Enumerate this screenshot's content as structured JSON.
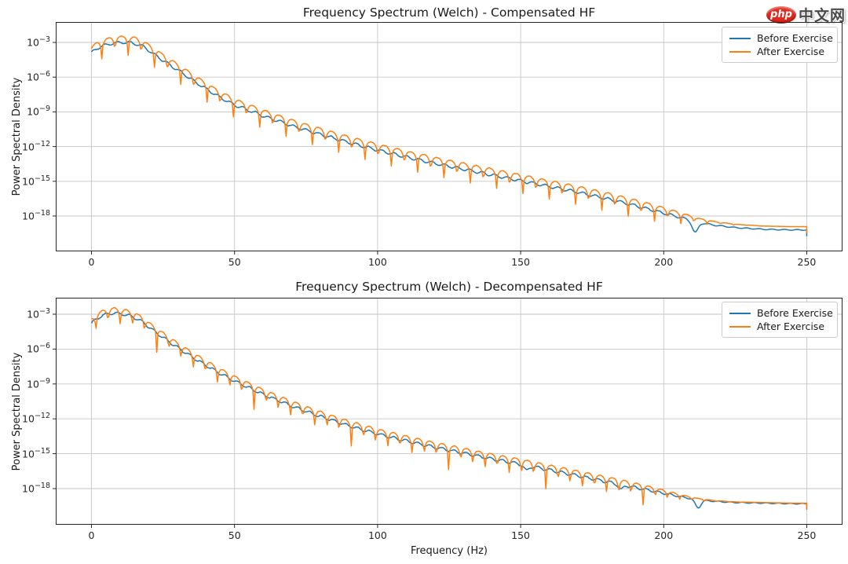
{
  "watermark": {
    "badge": "php",
    "text": "中文网",
    "badge_color": "#e02b20"
  },
  "colors": {
    "before": "#1f77b4",
    "after": "#ff7f0e",
    "grid": "#c6c6c6",
    "spine": "#262626",
    "tick_text": "#262626"
  },
  "chart_data": [
    {
      "type": "line",
      "title": "Frequency Spectrum (Welch) - Compensated HF",
      "legend_position": "upper right",
      "x_axis": {
        "label": "",
        "ticks": [
          0,
          50,
          100,
          150,
          200,
          250
        ],
        "range_hz": [
          -12.5,
          262.5
        ]
      },
      "y_axis": {
        "label": "Power Spectral Density",
        "scale": "log",
        "tick_exponents": [
          -3,
          -6,
          -9,
          -12,
          -15,
          -18
        ],
        "range_log10": [
          -21.0,
          -1.2
        ]
      },
      "series": [
        {
          "name": "Before Exercise",
          "color_key": "before",
          "anchors_hz": [
            0,
            2,
            4,
            6,
            8,
            10,
            12,
            14,
            16,
            18,
            20,
            22,
            25,
            28,
            30,
            35,
            40,
            45,
            50,
            60,
            70,
            80,
            90,
            100,
            110,
            120,
            130,
            140,
            150,
            160,
            170,
            180,
            190,
            200,
            207,
            212,
            218,
            225,
            235,
            245,
            250
          ],
          "anchors_log10_psd": [
            -3.9,
            -3.5,
            -3.3,
            -3.15,
            -3.05,
            -3.0,
            -3.0,
            -3.05,
            -3.15,
            -3.35,
            -3.7,
            -4.05,
            -4.55,
            -5.05,
            -5.35,
            -6.2,
            -7.0,
            -7.75,
            -8.4,
            -9.35,
            -10.2,
            -10.95,
            -11.65,
            -12.3,
            -12.9,
            -13.45,
            -13.95,
            -14.45,
            -14.95,
            -15.45,
            -15.95,
            -16.5,
            -17.1,
            -17.75,
            -18.2,
            -18.55,
            -18.8,
            -19.0,
            -19.15,
            -19.2,
            -19.2
          ],
          "ripple": {
            "amp": 0.12,
            "period_hz": 4.4,
            "phase": 1.2
          },
          "notches": [
            {
              "hz": 211,
              "depth": 0.95,
              "width_hz": 1.4
            }
          ],
          "end_drop_log10": 0.55
        },
        {
          "name": "After Exercise",
          "color_key": "after",
          "envelope_above_before_log10": 0.55,
          "tail_above_before_log10": 0.28,
          "comb_period_hz": 4.6,
          "comb_depth_log10": 2.5,
          "comb_phase": 0.7,
          "taper_center_hz": 208,
          "taper_width_hz": 6,
          "end_drop_log10": 0.55
        }
      ]
    },
    {
      "type": "line",
      "title": "Frequency Spectrum (Welch) - Decompensated HF",
      "legend_position": "upper right",
      "x_axis": {
        "label": "Frequency (Hz)",
        "ticks": [
          0,
          50,
          100,
          150,
          200,
          250
        ],
        "range_hz": [
          -12.5,
          262.5
        ]
      },
      "y_axis": {
        "label": "Power Spectral Density",
        "scale": "log",
        "tick_exponents": [
          -3,
          -6,
          -9,
          -12,
          -15,
          -18
        ],
        "range_log10": [
          -21.1,
          -1.5
        ]
      },
      "series": [
        {
          "name": "Before Exercise",
          "color_key": "before",
          "anchors_hz": [
            0,
            2,
            4,
            6,
            8,
            10,
            12,
            14,
            16,
            18,
            20,
            25,
            30,
            35,
            40,
            45,
            50,
            60,
            70,
            80,
            90,
            100,
            110,
            120,
            130,
            140,
            150,
            160,
            170,
            180,
            190,
            200,
            207,
            212,
            218,
            225,
            235,
            245,
            250
          ],
          "anchors_log10_psd": [
            -3.8,
            -3.35,
            -3.1,
            -2.95,
            -2.9,
            -2.95,
            -3.05,
            -3.2,
            -3.4,
            -3.7,
            -4.1,
            -5.0,
            -5.85,
            -6.65,
            -7.4,
            -8.1,
            -8.75,
            -9.9,
            -10.9,
            -11.8,
            -12.6,
            -13.3,
            -13.9,
            -14.45,
            -14.95,
            -15.45,
            -15.9,
            -16.4,
            -16.9,
            -17.4,
            -17.9,
            -18.4,
            -18.75,
            -18.95,
            -19.1,
            -19.2,
            -19.25,
            -19.3,
            -19.3
          ],
          "ripple": {
            "amp": 0.12,
            "period_hz": 4.2,
            "phase": 0.5
          },
          "notches": [
            {
              "hz": 212,
              "depth": 0.7,
              "width_hz": 1.4
            },
            {
              "hz": 185,
              "depth": 0.45,
              "width_hz": 1.2
            },
            {
              "hz": 152,
              "depth": 0.45,
              "width_hz": 1.2
            }
          ],
          "end_drop_log10": 0.5
        },
        {
          "name": "After Exercise",
          "color_key": "after",
          "envelope_above_before_log10": 0.45,
          "tail_above_before_log10": 0.05,
          "comb_period_hz": 4.25,
          "comb_depth_log10": 2.4,
          "comb_phase": 2.0,
          "taper_center_hz": 202,
          "taper_width_hz": 6,
          "end_drop_log10": 0.5
        }
      ]
    }
  ]
}
